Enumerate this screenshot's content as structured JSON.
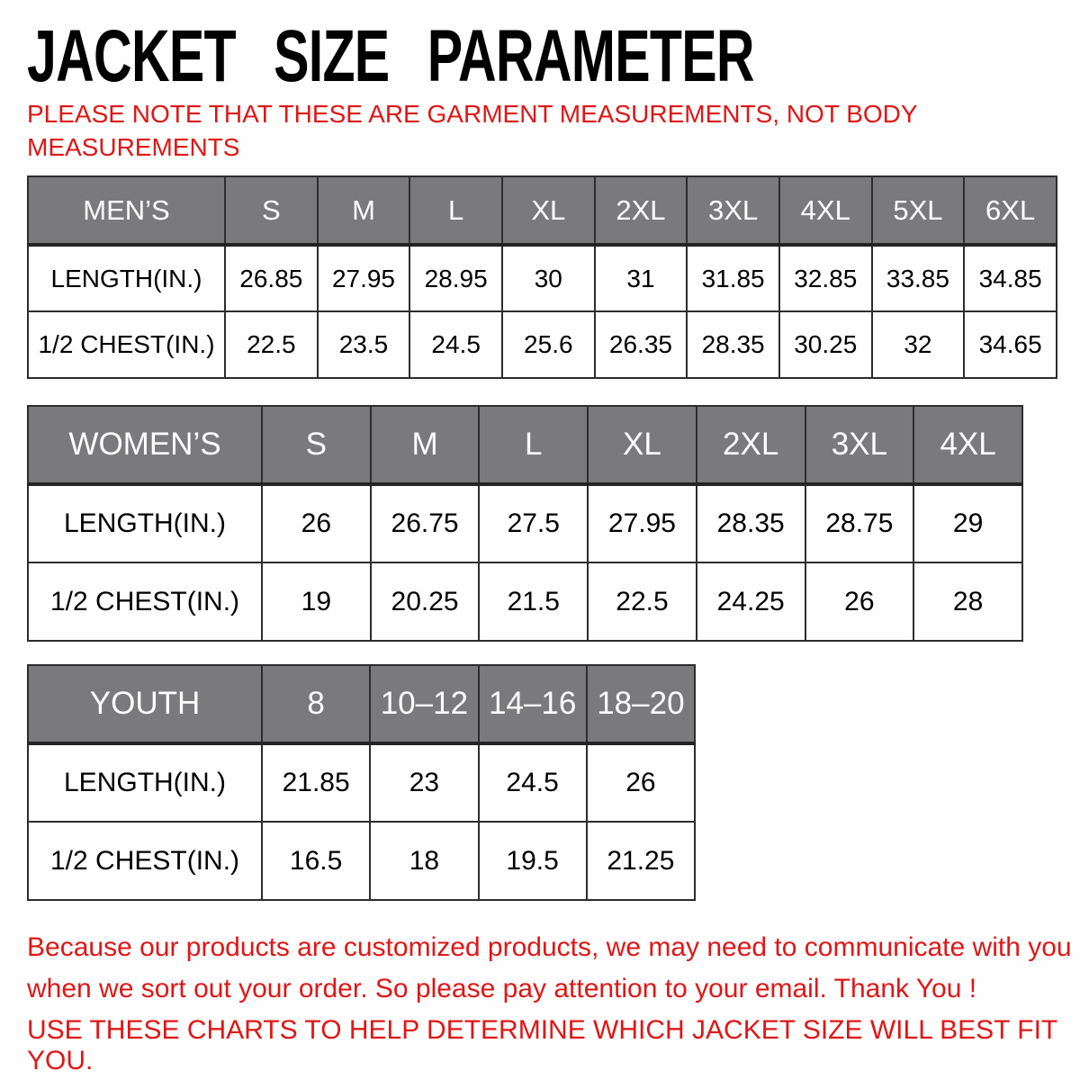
{
  "page": {
    "title": "JACKET SIZE PARAMETER",
    "note_lines": [
      "PLEASE NOTE THAT THESE ARE GARMENT MEASUREMENTS, NOT BODY",
      "MEASUREMENTS"
    ],
    "footer_lines": [
      "Because our products are customized products, we may need to communicate with you",
      "when we sort out your order. So please pay attention to your email. Thank You !"
    ],
    "footer_use_line": "USE THESE CHARTS TO HELP DETERMINE WHICH JACKET SIZE WILL BEST FIT YOU.",
    "colors": {
      "header_bg": "#7a7a7c",
      "border": "#2d2d2d",
      "accent_red": "#e01616"
    }
  },
  "tables": [
    {
      "id": "mens",
      "header": [
        "MEN’S",
        "S",
        "M",
        "L",
        "XL",
        "2XL",
        "3XL",
        "4XL",
        "5XL",
        "6XL"
      ],
      "rows": [
        {
          "label": "LENGTH(IN.)",
          "values": [
            "26.85",
            "27.95",
            "28.95",
            "30",
            "31",
            "31.85",
            "32.85",
            "33.85",
            "34.85"
          ]
        },
        {
          "label": "1/2 CHEST(IN.)",
          "values": [
            "22.5",
            "23.5",
            "24.5",
            "25.6",
            "26.35",
            "28.35",
            "30.25",
            "32",
            "34.65"
          ]
        }
      ]
    },
    {
      "id": "womens",
      "header": [
        "WOMEN’S",
        "S",
        "M",
        "L",
        "XL",
        "2XL",
        "3XL",
        "4XL"
      ],
      "rows": [
        {
          "label": "LENGTH(IN.)",
          "values": [
            "26",
            "26.75",
            "27.5",
            "27.95",
            "28.35",
            "28.75",
            "29"
          ]
        },
        {
          "label": "1/2 CHEST(IN.)",
          "values": [
            "19",
            "20.25",
            "21.5",
            "22.5",
            "24.25",
            "26",
            "28"
          ]
        }
      ]
    },
    {
      "id": "youth",
      "header": [
        "YOUTH",
        "8",
        "10–12",
        "14–16",
        "18–20"
      ],
      "rows": [
        {
          "label": "LENGTH(IN.)",
          "values": [
            "21.85",
            "23",
            "24.5",
            "26"
          ]
        },
        {
          "label": "1/2 CHEST(IN.)",
          "values": [
            "16.5",
            "18",
            "19.5",
            "21.25"
          ]
        }
      ]
    }
  ]
}
